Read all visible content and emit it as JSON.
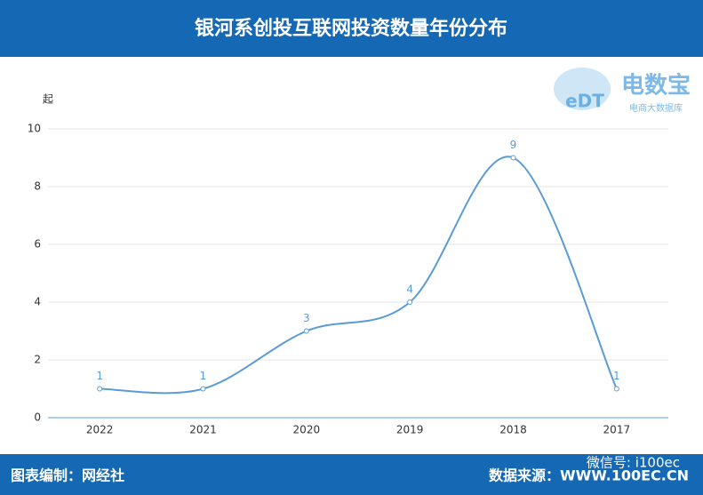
{
  "chart_data": {
    "type": "line",
    "title": "银河系创投互联网投资数量年份分布",
    "y_label": "起",
    "categories": [
      "2022",
      "2021",
      "2020",
      "2019",
      "2018",
      "2017"
    ],
    "values": [
      1,
      1,
      3,
      4,
      9,
      1
    ],
    "color": "#5b9bd5",
    "ylim": [
      0,
      10
    ],
    "yticks": [
      0,
      2,
      4,
      6,
      8,
      10
    ],
    "grid": true,
    "smooth": true
  },
  "footer": {
    "left": "图表编制：网经社",
    "right": "数据来源：WWW.100EC.CN"
  },
  "watermark": {
    "brand": "电数宝",
    "tagline": "电商大数据库",
    "logo": "eDT",
    "wechat": "微信号: i100ec"
  }
}
